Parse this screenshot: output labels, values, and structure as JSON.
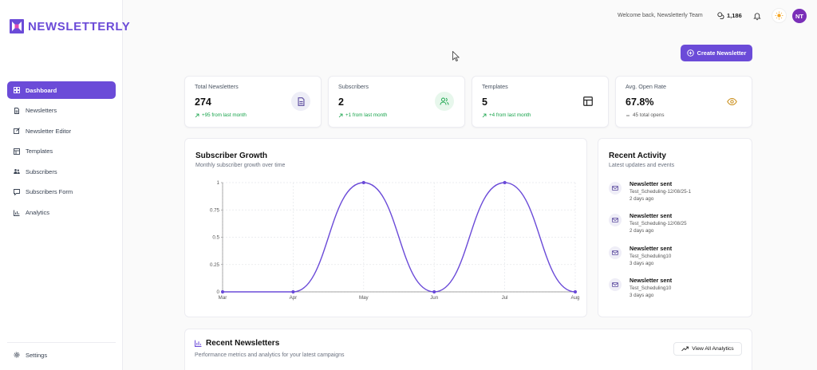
{
  "app": {
    "name": "NEWSLETTERLY"
  },
  "sidebar": {
    "items": [
      {
        "label": "Dashboard",
        "icon": "dashboard-icon",
        "active": true
      },
      {
        "label": "Newsletters",
        "icon": "document-icon"
      },
      {
        "label": "Newsletter Editor",
        "icon": "edit-icon"
      },
      {
        "label": "Templates",
        "icon": "template-icon"
      },
      {
        "label": "Subscribers",
        "icon": "users-icon"
      },
      {
        "label": "Subscribers Form",
        "icon": "form-icon"
      },
      {
        "label": "Analytics",
        "icon": "bar-chart-icon"
      }
    ],
    "settings_label": "Settings"
  },
  "header": {
    "welcome": "Welcome back, Newsletterly Team",
    "credits": "1,186",
    "avatar_initials": "NT"
  },
  "actions": {
    "create_label": "Create Newsletter"
  },
  "stats": [
    {
      "label": "Total Newsletters",
      "value": "274",
      "sub": "+95 from last month",
      "icon": "document-icon"
    },
    {
      "label": "Subscribers",
      "value": "2",
      "sub": "+1 from last month",
      "icon": "users-icon"
    },
    {
      "label": "Templates",
      "value": "5",
      "sub": "+4 from last month",
      "icon": "template-icon"
    },
    {
      "label": "Avg. Open Rate",
      "value": "67.8%",
      "sub": "45 total opens",
      "icon": "eye-icon"
    }
  ],
  "growth": {
    "title": "Subscriber Growth",
    "subtitle": "Monthly subscriber growth over time"
  },
  "chart_data": {
    "type": "line",
    "categories": [
      "Mar",
      "Apr",
      "May",
      "Jun",
      "Jul",
      "Aug"
    ],
    "values": [
      0,
      0,
      1,
      0,
      1,
      0
    ],
    "ylim": [
      0,
      1
    ],
    "yticks": [
      "0",
      "0.25",
      "0.5",
      "0.75",
      "1"
    ],
    "grid": true,
    "color": "#6b4bd8"
  },
  "activity": {
    "title": "Recent Activity",
    "subtitle": "Latest updates and events",
    "items": [
      {
        "title": "Newsletter sent",
        "detail": "Test_Scheduling-12/08/25-1",
        "time": "2 days ago"
      },
      {
        "title": "Newsletter sent",
        "detail": "Test_Scheduling-12/08/25",
        "time": "2 days ago"
      },
      {
        "title": "Newsletter sent",
        "detail": "Test_Scheduling10",
        "time": "3 days ago"
      },
      {
        "title": "Newsletter sent",
        "detail": "Test_Scheduling10",
        "time": "3 days ago"
      }
    ]
  },
  "recent": {
    "title": "Recent Newsletters",
    "subtitle": "Performance metrics and analytics for your latest campaigns",
    "view_all_label": "View All Analytics"
  },
  "colors": {
    "accent": "#6b4bd8",
    "positive": "#16a34a",
    "avatar": "#7a2fb8"
  }
}
